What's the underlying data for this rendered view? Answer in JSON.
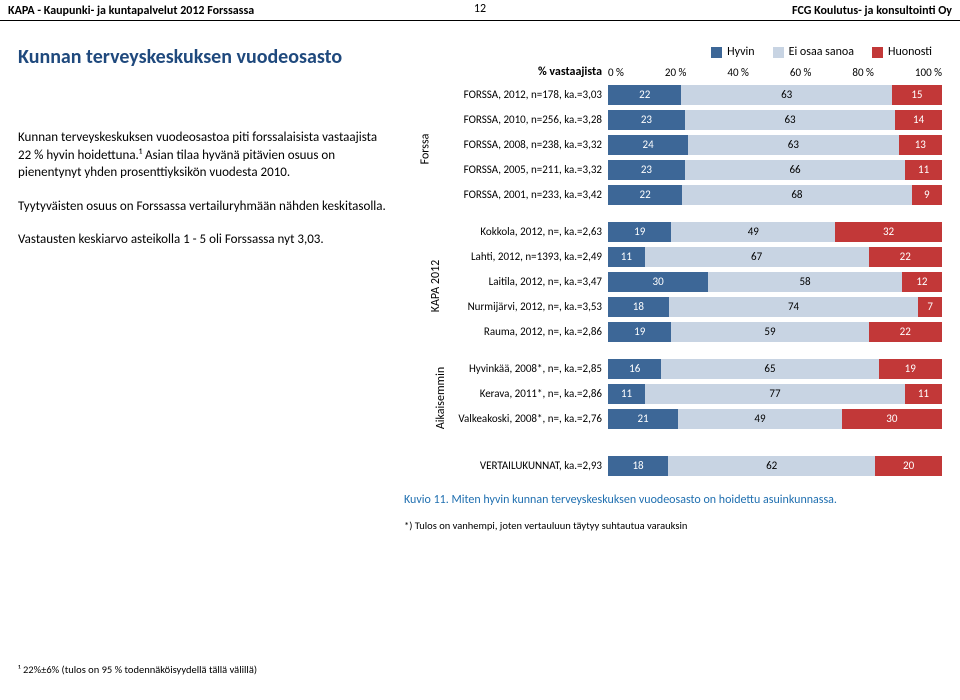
{
  "header": {
    "left": "KAPA - Kaupunki- ja kuntapalvelut 2012 Forssassa",
    "page": "12",
    "right": "FCG Koulutus- ja konsultointi Oy"
  },
  "title": "Kunnan terveyskeskuksen vuodeosasto",
  "paragraphs": [
    "Kunnan terveyskeskuksen vuodeosastoa piti forssalaisista vastaajista 22 % hyvin hoidettuna.¹ Asian tilaa hyvänä pitävien osuus on pienentynyt yhden prosenttiyksikön vuodesta 2010.",
    "Tyytyväisten osuus on Forssassa vertailuryhmään nähden keskitasolla.",
    "Vastausten keskiarvo asteikolla 1 - 5 oli Forssassa nyt 3,03."
  ],
  "legend": {
    "items": [
      {
        "label": "Hyvin",
        "color": "#3d6797"
      },
      {
        "label": "Ei osaa sanoa",
        "color": "#c8d4e3"
      },
      {
        "label": "Huonosti",
        "color": "#c23838"
      }
    ]
  },
  "axis": {
    "label": "% vastaajista",
    "ticks": [
      "0 %",
      "20 %",
      "40 %",
      "60 %",
      "80 %",
      "100 %"
    ]
  },
  "colors": {
    "good": "#3d6797",
    "neutral": "#c8d4e3",
    "bad": "#c23838",
    "neutral_text": "#000000"
  },
  "groups": [
    {
      "name": "Forssa",
      "rows": [
        {
          "label": "FORSSA, 2012, n=178, ka.=3,03",
          "vals": [
            22,
            63,
            15
          ]
        },
        {
          "label": "FORSSA, 2010, n=256, ka.=3,28",
          "vals": [
            23,
            63,
            14
          ]
        },
        {
          "label": "FORSSA, 2008, n=238, ka.=3,32",
          "vals": [
            24,
            63,
            13
          ]
        },
        {
          "label": "FORSSA, 2005, n=211, ka.=3,32",
          "vals": [
            23,
            66,
            11
          ]
        },
        {
          "label": "FORSSA, 2001, n=233, ka.=3,42",
          "vals": [
            22,
            68,
            9
          ]
        }
      ]
    },
    {
      "name": "KAPA 2012",
      "rows": [
        {
          "label": "Kokkola, 2012, n=, ka.=2,63",
          "vals": [
            19,
            49,
            32
          ]
        },
        {
          "label": "Lahti, 2012, n=1393, ka.=2,49",
          "vals": [
            11,
            67,
            22
          ]
        },
        {
          "label": "Laitila, 2012, n=, ka.=3,47",
          "vals": [
            30,
            58,
            12
          ]
        },
        {
          "label": "Nurmijärvi, 2012, n=, ka.=3,53",
          "vals": [
            18,
            74,
            7
          ]
        },
        {
          "label": "Rauma, 2012, n=, ka.=2,86",
          "vals": [
            19,
            59,
            22
          ]
        }
      ]
    },
    {
      "name": "Aikaisemmin",
      "rows": [
        {
          "label": "Hyvinkää, 2008*, n=, ka.=2,85",
          "vals": [
            16,
            65,
            19
          ]
        },
        {
          "label": "Kerava, 2011*, n=, ka.=2,86",
          "vals": [
            11,
            77,
            11
          ]
        },
        {
          "label": "Valkeakoski, 2008*, n=, ka.=2,76",
          "vals": [
            21,
            49,
            30
          ]
        }
      ]
    }
  ],
  "summary_row": {
    "label": "VERTAILUKUNNAT, ka.=2,93",
    "vals": [
      18,
      62,
      20
    ]
  },
  "caption": "Kuvio 11. Miten hyvin kunnan terveyskeskuksen vuodeosasto on hoidettu asuinkunnassa.",
  "footnote_left": "¹ 22%±6% (tulos on 95 % todennäköisyydellä tällä välillä)",
  "footnote_right": "*) Tulos on vanhempi, joten vertauluun täytyy suhtautua varauksin"
}
